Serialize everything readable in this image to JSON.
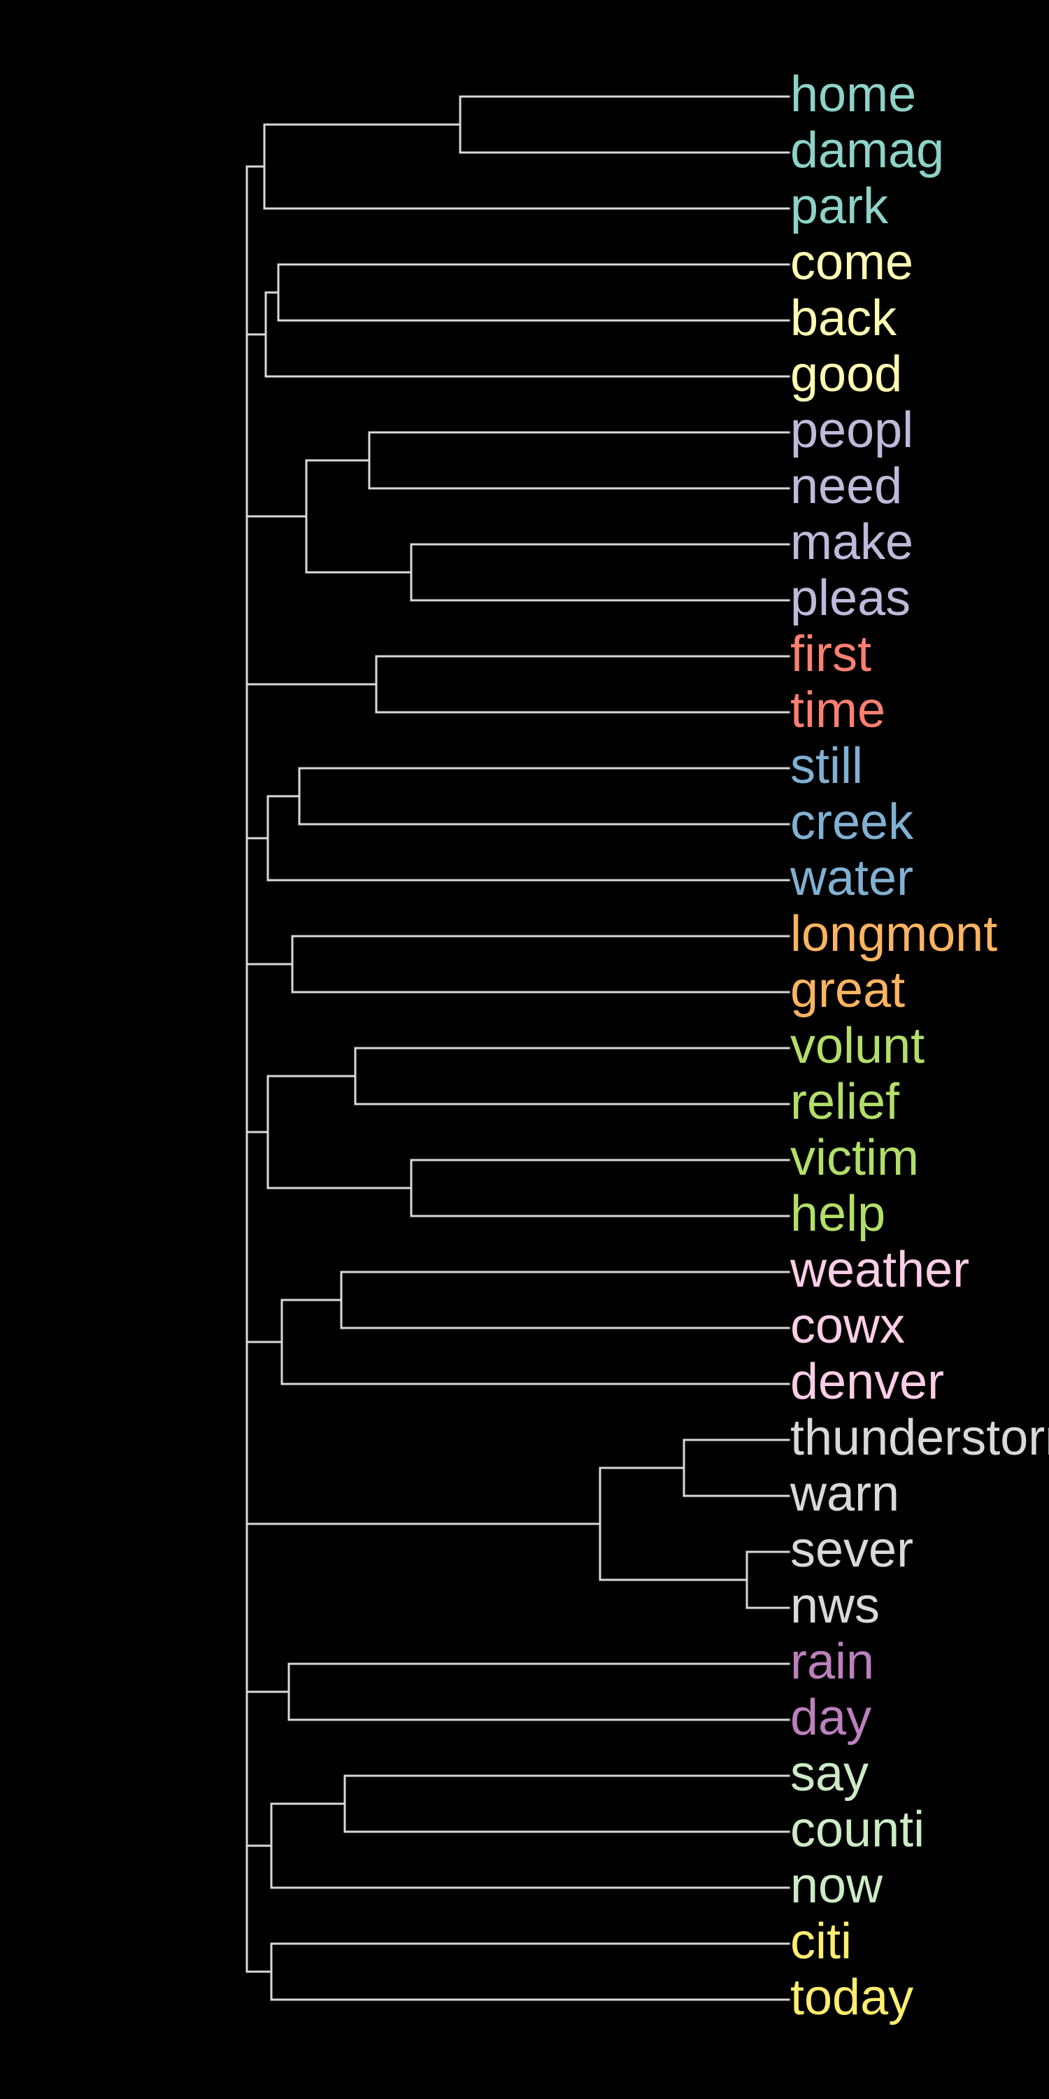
{
  "diagram": {
    "type": "dendrogram",
    "orientation": "horizontal",
    "background_color": "#000000",
    "branch_color": "#d9d9d9",
    "leaves": [
      {
        "label": "home",
        "color": "#8dd3c7"
      },
      {
        "label": "damag",
        "color": "#8dd3c7"
      },
      {
        "label": "park",
        "color": "#8dd3c7"
      },
      {
        "label": "come",
        "color": "#ffffb3"
      },
      {
        "label": "back",
        "color": "#ffffb3"
      },
      {
        "label": "good",
        "color": "#ffffb3"
      },
      {
        "label": "peopl",
        "color": "#bebada"
      },
      {
        "label": "need",
        "color": "#bebada"
      },
      {
        "label": "make",
        "color": "#bebada"
      },
      {
        "label": "pleas",
        "color": "#bebada"
      },
      {
        "label": "first",
        "color": "#fb8072"
      },
      {
        "label": "time",
        "color": "#fb8072"
      },
      {
        "label": "still",
        "color": "#80b1d3"
      },
      {
        "label": "creek",
        "color": "#80b1d3"
      },
      {
        "label": "water",
        "color": "#80b1d3"
      },
      {
        "label": "longmont",
        "color": "#fdb462"
      },
      {
        "label": "great",
        "color": "#fdb462"
      },
      {
        "label": "volunt",
        "color": "#b3de69"
      },
      {
        "label": "relief",
        "color": "#b3de69"
      },
      {
        "label": "victim",
        "color": "#b3de69"
      },
      {
        "label": "help",
        "color": "#b3de69"
      },
      {
        "label": "weather",
        "color": "#fccde5"
      },
      {
        "label": "cowx",
        "color": "#fccde5"
      },
      {
        "label": "denver",
        "color": "#fccde5"
      },
      {
        "label": "thunderstorm",
        "color": "#d9d9d9"
      },
      {
        "label": "warn",
        "color": "#d9d9d9"
      },
      {
        "label": "sever",
        "color": "#d9d9d9"
      },
      {
        "label": "nws",
        "color": "#d9d9d9"
      },
      {
        "label": "rain",
        "color": "#bc80bd"
      },
      {
        "label": "day",
        "color": "#bc80bd"
      },
      {
        "label": "say",
        "color": "#ccebc5"
      },
      {
        "label": "counti",
        "color": "#ccebc5"
      },
      {
        "label": "now",
        "color": "#ccebc5"
      },
      {
        "label": "citi",
        "color": "#ffed6f"
      },
      {
        "label": "today",
        "color": "#ffed6f"
      }
    ],
    "tree": {
      "h": 7.75,
      "children": [
        {
          "h": 7.5,
          "children": [
            {
              "h": 4.7,
              "children": [
                {
                  "leaf": 0
                },
                {
                  "leaf": 1
                }
              ]
            },
            {
              "leaf": 2
            }
          ]
        },
        {
          "h": 7.48,
          "children": [
            {
              "h": 7.3,
              "children": [
                {
                  "leaf": 3
                },
                {
                  "leaf": 4
                }
              ]
            },
            {
              "leaf": 5
            }
          ]
        },
        {
          "h": 6.9,
          "children": [
            {
              "h": 6.0,
              "children": [
                {
                  "leaf": 6
                },
                {
                  "leaf": 7
                }
              ]
            },
            {
              "h": 5.4,
              "children": [
                {
                  "leaf": 8
                },
                {
                  "leaf": 9
                }
              ]
            }
          ]
        },
        {
          "h": 5.9,
          "children": [
            {
              "leaf": 10
            },
            {
              "leaf": 11
            }
          ]
        },
        {
          "h": 7.45,
          "children": [
            {
              "h": 7.0,
              "children": [
                {
                  "leaf": 12
                },
                {
                  "leaf": 13
                }
              ]
            },
            {
              "leaf": 14
            }
          ]
        },
        {
          "h": 7.1,
          "children": [
            {
              "leaf": 15
            },
            {
              "leaf": 16
            }
          ]
        },
        {
          "h": 7.45,
          "children": [
            {
              "h": 6.2,
              "children": [
                {
                  "leaf": 17
                },
                {
                  "leaf": 18
                }
              ]
            },
            {
              "h": 5.4,
              "children": [
                {
                  "leaf": 19
                },
                {
                  "leaf": 20
                }
              ]
            }
          ]
        },
        {
          "h": 7.25,
          "children": [
            {
              "h": 6.4,
              "children": [
                {
                  "leaf": 21
                },
                {
                  "leaf": 22
                }
              ]
            },
            {
              "leaf": 23
            }
          ]
        },
        {
          "h": 2.7,
          "children": [
            {
              "h": 1.5,
              "children": [
                {
                  "leaf": 24
                },
                {
                  "leaf": 25
                }
              ]
            },
            {
              "h": 0.6,
              "children": [
                {
                  "leaf": 26
                },
                {
                  "leaf": 27
                }
              ]
            }
          ]
        },
        {
          "h": 7.15,
          "children": [
            {
              "leaf": 28
            },
            {
              "leaf": 29
            }
          ]
        },
        {
          "h": 7.4,
          "children": [
            {
              "h": 6.35,
              "children": [
                {
                  "leaf": 30
                },
                {
                  "leaf": 31
                }
              ]
            },
            {
              "leaf": 32
            }
          ]
        },
        {
          "h": 7.4,
          "children": [
            {
              "leaf": 33
            },
            {
              "leaf": 34
            }
          ]
        }
      ]
    }
  }
}
